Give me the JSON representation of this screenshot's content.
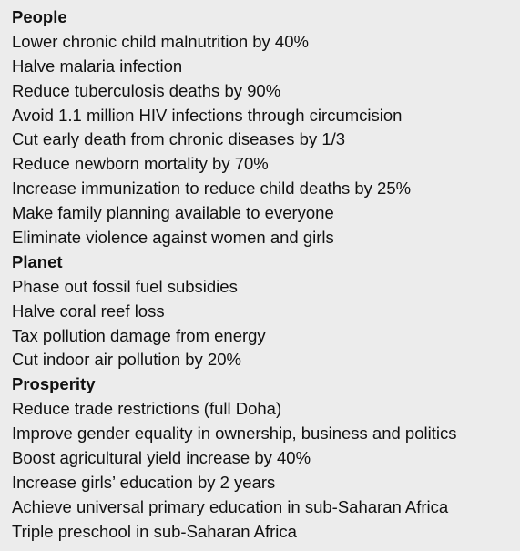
{
  "sections": [
    {
      "heading": "People",
      "items": [
        "Lower chronic child malnutrition by 40%",
        "Halve malaria infection",
        "Reduce tuberculosis deaths by 90%",
        "Avoid 1.1 million HIV infections through circumcision",
        "Cut early death from chronic diseases by 1/3",
        "Reduce newborn mortality by 70%",
        "Increase immunization to reduce child deaths by 25%",
        "Make family planning available to everyone",
        "Eliminate violence against women and girls"
      ]
    },
    {
      "heading": "Planet",
      "items": [
        "Phase out fossil fuel subsidies",
        "Halve coral reef loss",
        "Tax pollution damage from energy",
        "Cut indoor air pollution by 20%"
      ]
    },
    {
      "heading": "Prosperity",
      "items": [
        "Reduce trade restrictions (full Doha)",
        "Improve gender equality in ownership, business and politics",
        "Boost agricultural yield increase by 40%",
        "Increase girls’ education by 2 years",
        "Achieve universal primary education in sub-Saharan Africa",
        "Triple preschool in sub-Saharan Africa"
      ]
    }
  ]
}
